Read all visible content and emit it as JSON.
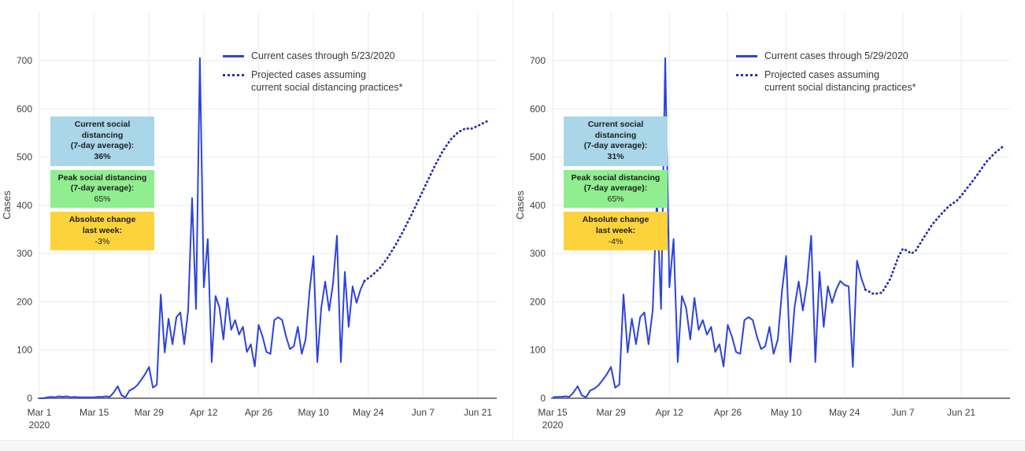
{
  "y_axis_title": "Cases",
  "chart_data": [
    {
      "type": "line",
      "panel": "left",
      "ylabel": "Cases",
      "ylim": [
        0,
        730
      ],
      "grid": true,
      "y_ticks": [
        0,
        100,
        200,
        300,
        400,
        500,
        600,
        700
      ],
      "x_ticks": [
        {
          "label": "Mar 1",
          "sublabel": "2020",
          "date": "2020-03-01"
        },
        {
          "label": "Mar 15",
          "date": "2020-03-15"
        },
        {
          "label": "Mar 29",
          "date": "2020-03-29"
        },
        {
          "label": "Apr 12",
          "date": "2020-04-12"
        },
        {
          "label": "Apr 26",
          "date": "2020-04-26"
        },
        {
          "label": "May 10",
          "date": "2020-05-10"
        },
        {
          "label": "May 24",
          "date": "2020-05-24"
        },
        {
          "label": "Jun 7",
          "date": "2020-06-07"
        },
        {
          "label": "Jun 21",
          "date": "2020-06-21"
        }
      ],
      "legend": [
        {
          "style": "solid",
          "line1": "Current cases through 5/23/2020",
          "line2": ""
        },
        {
          "style": "dotted",
          "line1": "Projected cases assuming",
          "line2": "current social distancing practices*"
        }
      ],
      "annotations": [
        {
          "bg": "#a9d6e8",
          "lines": [
            "Current social distancing",
            "(7-day average):",
            "36%"
          ],
          "value_bold": true
        },
        {
          "bg": "#90ee90",
          "lines": [
            "Peak social distancing",
            "(7-day average):",
            "65%"
          ],
          "value_bold": false
        },
        {
          "bg": "#fdd33c",
          "lines": [
            "Absolute change",
            "last week:",
            "-3%"
          ],
          "value_bold": false
        }
      ],
      "series": [
        {
          "name": "Current cases",
          "style": "solid",
          "color": "#2d43dd",
          "start": "2020-03-01",
          "cadence": "daily",
          "values": [
            0,
            0,
            2,
            3,
            2,
            4,
            3,
            4,
            2,
            3,
            2,
            2,
            2,
            2,
            2,
            3,
            3,
            4,
            3,
            12,
            25,
            6,
            2,
            16,
            20,
            27,
            38,
            50,
            65,
            22,
            28,
            215,
            95,
            165,
            112,
            168,
            178,
            112,
            182,
            415,
            185,
            705,
            230,
            330,
            75,
            212,
            188,
            122,
            208,
            142,
            162,
            132,
            148,
            96,
            112,
            66,
            152,
            128,
            96,
            92,
            162,
            168,
            162,
            128,
            102,
            108,
            148,
            92,
            122,
            222,
            295,
            75,
            188,
            242,
            182,
            238,
            337,
            75,
            262,
            148,
            232,
            198,
            225,
            243
          ]
        },
        {
          "name": "Projected cases",
          "style": "dotted",
          "color": "#2a2fae",
          "points": [
            [
              "2020-05-23",
              243
            ],
            [
              "2020-05-25",
              255
            ],
            [
              "2020-05-27",
              270
            ],
            [
              "2020-05-29",
              292
            ],
            [
              "2020-05-31",
              318
            ],
            [
              "2020-06-02",
              348
            ],
            [
              "2020-06-04",
              380
            ],
            [
              "2020-06-06",
              414
            ],
            [
              "2020-06-08",
              448
            ],
            [
              "2020-06-10",
              482
            ],
            [
              "2020-06-12",
              512
            ],
            [
              "2020-06-14",
              536
            ],
            [
              "2020-06-16",
              552
            ],
            [
              "2020-06-18",
              560
            ],
            [
              "2020-06-19",
              558
            ],
            [
              "2020-06-20",
              561
            ],
            [
              "2020-06-22",
              569
            ],
            [
              "2020-06-24",
              577
            ]
          ]
        }
      ]
    },
    {
      "type": "line",
      "panel": "right",
      "ylabel": "Cases",
      "ylim": [
        0,
        730
      ],
      "grid": true,
      "y_ticks": [
        0,
        100,
        200,
        300,
        400,
        500,
        600,
        700
      ],
      "x_ticks": [
        {
          "label": "Mar 15",
          "sublabel": "2020",
          "date": "2020-03-15"
        },
        {
          "label": "Mar 29",
          "date": "2020-03-29"
        },
        {
          "label": "Apr 12",
          "date": "2020-04-12"
        },
        {
          "label": "Apr 26",
          "date": "2020-04-26"
        },
        {
          "label": "May 10",
          "date": "2020-05-10"
        },
        {
          "label": "May 24",
          "date": "2020-05-24"
        },
        {
          "label": "Jun 7",
          "date": "2020-06-07"
        },
        {
          "label": "Jun 21",
          "date": "2020-06-21"
        }
      ],
      "legend": [
        {
          "style": "solid",
          "line1": "Current cases through 5/29/2020",
          "line2": ""
        },
        {
          "style": "dotted",
          "line1": "Projected cases assuming",
          "line2": "current social distancing practices*"
        }
      ],
      "annotations": [
        {
          "bg": "#a9d6e8",
          "lines": [
            "Current social distancing",
            "(7-day average):",
            "31%"
          ],
          "value_bold": true
        },
        {
          "bg": "#90ee90",
          "lines": [
            "Peak social distancing",
            "(7-day average):",
            "65%"
          ],
          "value_bold": false
        },
        {
          "bg": "#fdd33c",
          "lines": [
            "Absolute change",
            "last week:",
            "-4%"
          ],
          "value_bold": false
        }
      ],
      "series": [
        {
          "name": "Current cases",
          "style": "solid",
          "color": "#2d43dd",
          "start": "2020-03-15",
          "cadence": "daily",
          "values": [
            2,
            3,
            3,
            4,
            3,
            12,
            25,
            6,
            2,
            16,
            20,
            27,
            38,
            50,
            65,
            22,
            28,
            215,
            95,
            165,
            112,
            168,
            178,
            112,
            182,
            415,
            185,
            705,
            230,
            330,
            75,
            212,
            188,
            122,
            208,
            142,
            162,
            132,
            148,
            96,
            112,
            66,
            152,
            128,
            96,
            92,
            162,
            168,
            162,
            128,
            102,
            108,
            148,
            92,
            122,
            222,
            295,
            75,
            188,
            242,
            182,
            238,
            337,
            75,
            262,
            148,
            232,
            198,
            225,
            243,
            235,
            232,
            65,
            285,
            250,
            225
          ]
        },
        {
          "name": "Projected cases",
          "style": "dotted",
          "color": "#2a2fae",
          "points": [
            [
              "2020-05-29",
              225
            ],
            [
              "2020-05-31",
              216
            ],
            [
              "2020-06-02",
              219
            ],
            [
              "2020-06-04",
              248
            ],
            [
              "2020-06-06",
              295
            ],
            [
              "2020-06-07",
              310
            ],
            [
              "2020-06-08",
              306
            ],
            [
              "2020-06-09",
              300
            ],
            [
              "2020-06-10",
              305
            ],
            [
              "2020-06-12",
              333
            ],
            [
              "2020-06-14",
              360
            ],
            [
              "2020-06-16",
              380
            ],
            [
              "2020-06-18",
              398
            ],
            [
              "2020-06-20",
              410
            ],
            [
              "2020-06-21",
              420
            ],
            [
              "2020-06-23",
              442
            ],
            [
              "2020-06-25",
              465
            ],
            [
              "2020-06-27",
              490
            ],
            [
              "2020-06-29",
              508
            ],
            [
              "2020-07-01",
              522
            ]
          ]
        }
      ]
    }
  ],
  "colors": {
    "actual_line": "#2d43dd",
    "projected_line": "#2a2fae",
    "gridline": "#ebebeb",
    "axis_line": "#7d7d7d",
    "tick_text": "#3f3f3f",
    "box_blue": "#a9d6e8",
    "box_green": "#90ee90",
    "box_yellow": "#fdd33c"
  }
}
